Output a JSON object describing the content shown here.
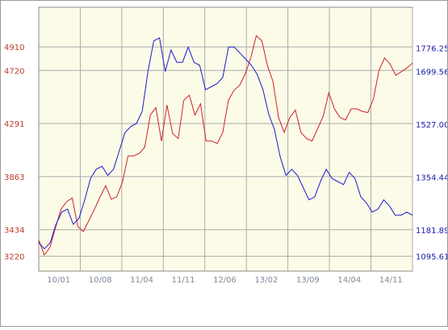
{
  "chart_data": {
    "type": "line",
    "x_labels": [
      "10/01",
      "10/08",
      "11/04",
      "11/11",
      "12/06",
      "13/02",
      "13/09",
      "14/04",
      "14/11"
    ],
    "left_axis": {
      "ticks": [
        3220,
        3434,
        3863,
        4291,
        4720,
        4910
      ],
      "range": [
        3100,
        5230
      ],
      "color": "#c0392b"
    },
    "right_axis": {
      "ticks": [
        "1095.61",
        "1181.89",
        "1354.44",
        "1527.00",
        "1699.56",
        "1776.25"
      ],
      "range": [
        1047,
        1910
      ],
      "color": "#1a1aa8"
    },
    "grid": true,
    "plot_background": "#fcfbe8",
    "series": [
      {
        "axis": "left",
        "color": "#cc2222",
        "values": [
          3350,
          3230,
          3290,
          3450,
          3600,
          3660,
          3690,
          3460,
          3420,
          3510,
          3600,
          3700,
          3790,
          3680,
          3700,
          3820,
          4030,
          4030,
          4050,
          4100,
          4360,
          4420,
          4150,
          4440,
          4210,
          4170,
          4480,
          4520,
          4360,
          4450,
          4150,
          4150,
          4130,
          4220,
          4480,
          4560,
          4600,
          4690,
          4820,
          5000,
          4960,
          4760,
          4630,
          4340,
          4220,
          4340,
          4400,
          4220,
          4170,
          4150,
          4250,
          4350,
          4540,
          4410,
          4340,
          4320,
          4410,
          4410,
          4390,
          4380,
          4490,
          4720,
          4820,
          4770,
          4680,
          4710,
          4740,
          4780
        ]
      },
      {
        "axis": "right",
        "color": "#1a1ad0",
        "values": [
          1140,
          1120,
          1140,
          1200,
          1240,
          1250,
          1200,
          1220,
          1280,
          1350,
          1380,
          1390,
          1360,
          1380,
          1440,
          1500,
          1520,
          1530,
          1570,
          1700,
          1800,
          1810,
          1700,
          1770,
          1730,
          1730,
          1780,
          1730,
          1720,
          1640,
          1650,
          1660,
          1680,
          1780,
          1780,
          1760,
          1740,
          1720,
          1690,
          1640,
          1560,
          1510,
          1420,
          1360,
          1380,
          1360,
          1320,
          1280,
          1290,
          1340,
          1380,
          1350,
          1340,
          1330,
          1370,
          1350,
          1290,
          1270,
          1240,
          1250,
          1280,
          1260,
          1230,
          1230,
          1240,
          1230
        ]
      }
    ]
  }
}
